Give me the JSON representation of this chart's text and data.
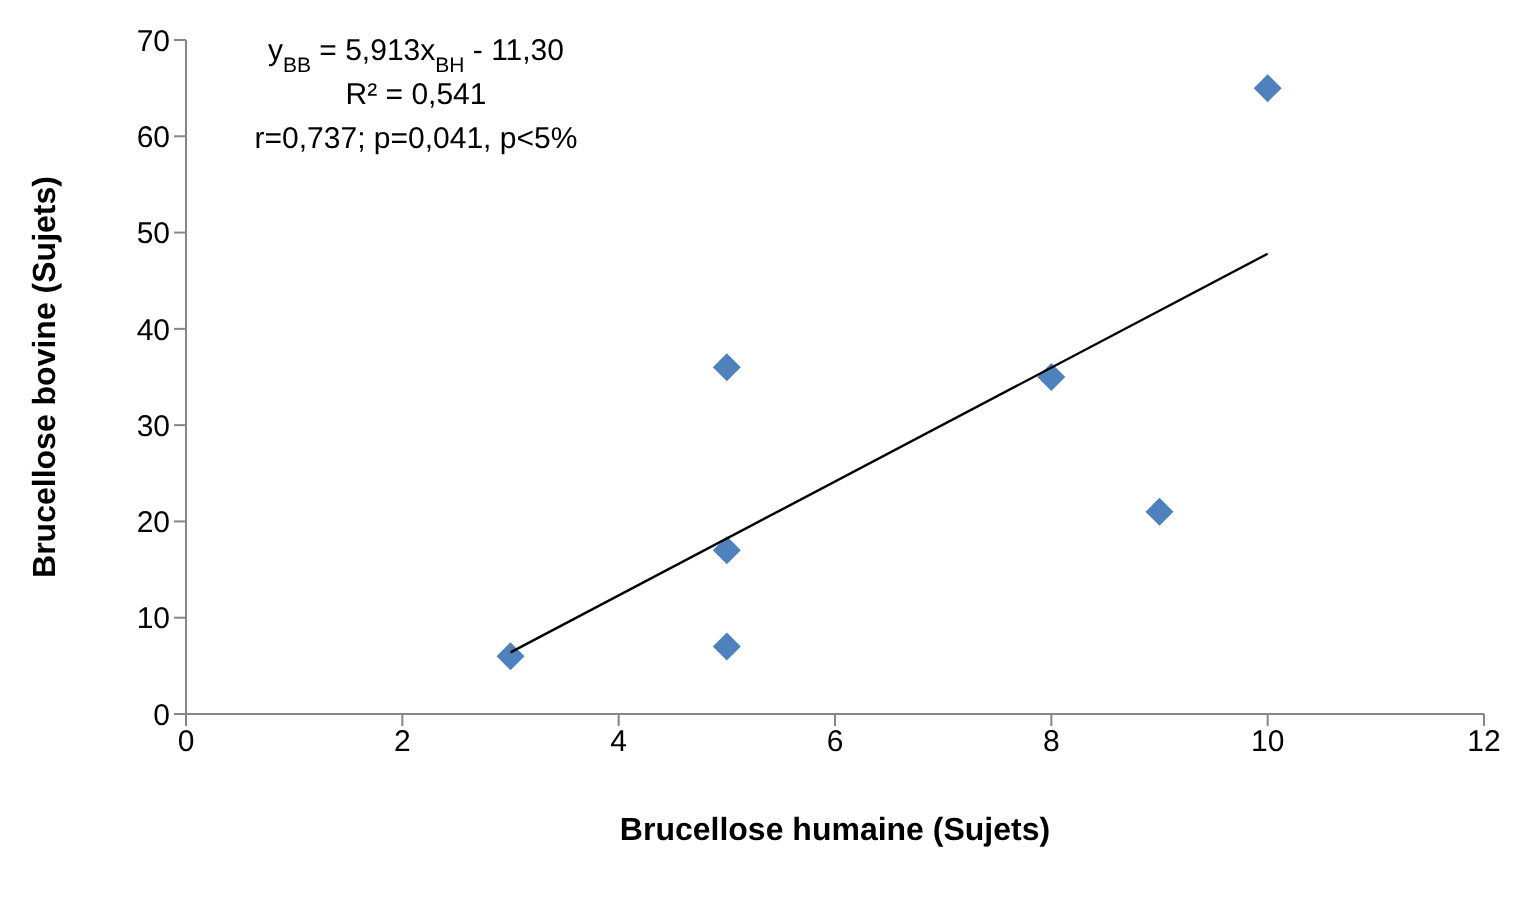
{
  "chart_data": {
    "type": "scatter",
    "xlabel": "Brucellose humaine (Sujets)",
    "ylabel": "Brucellose bovine (Sujets)",
    "xlim": [
      0,
      12
    ],
    "xticks": [
      0,
      2,
      4,
      6,
      8,
      10,
      12
    ],
    "ylim": [
      0,
      70
    ],
    "yticks": [
      0,
      10,
      20,
      30,
      40,
      50,
      60,
      70
    ],
    "marker": "diamond",
    "series": [
      {
        "color": "#4f81bd",
        "x": [
          3,
          5,
          5,
          5,
          8,
          9,
          10
        ],
        "values": [
          6,
          7,
          17,
          36,
          35,
          21,
          65
        ]
      },
      {
        "type": "line",
        "color": "#000000",
        "marker": "none",
        "line_style": "solid",
        "x": [
          3,
          10
        ],
        "values": [
          6.4,
          47.8
        ]
      }
    ],
    "annotations": [
      "y$_{BB}$ = 5,913x$_{BH}$ - 11,30",
      "R² = 0,541",
      "r=0,737; p=0,041, p<5%"
    ]
  }
}
